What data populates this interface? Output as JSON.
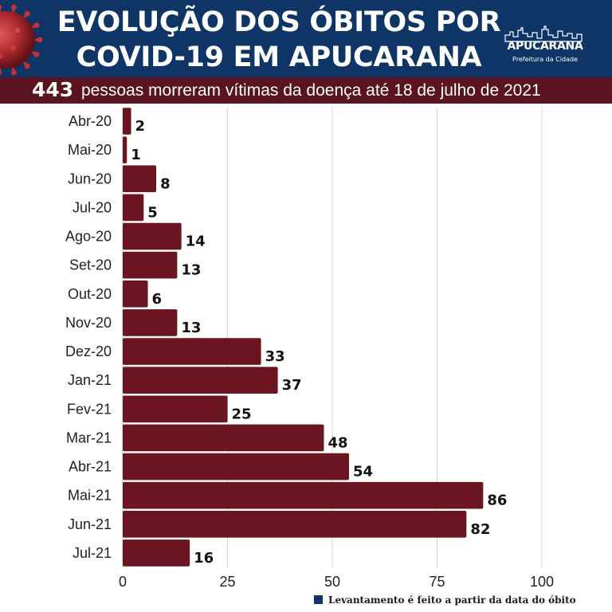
{
  "header": {
    "title_line1": "EVOLUÇÃO DOS ÓBITOS POR",
    "title_line2": "COVID-19 EM APUCARANA",
    "logo_name": "APUCARANA",
    "logo_sub": "Prefeitura da Cidade"
  },
  "subtitle": {
    "total": "443",
    "text": "pessoas morreram vítimas da doença até 18 de julho de 2021"
  },
  "footnote": "Levantamento é feito a partir da data do óbito",
  "colors": {
    "header_bg": "#0e3566",
    "subtitle_bg": "#5a1420",
    "bar": "#6b1520",
    "footnote_swatch": "#0e3566"
  },
  "icons": [
    "coronavirus-icon",
    "city-skyline-icon"
  ],
  "chart_data": {
    "type": "bar",
    "orientation": "horizontal",
    "categories": [
      "Abr-20",
      "Mai-20",
      "Jun-20",
      "Jul-20",
      "Ago-20",
      "Set-20",
      "Out-20",
      "Nov-20",
      "Dez-20",
      "Jan-21",
      "Fev-21",
      "Mar-21",
      "Abr-21",
      "Mai-21",
      "Jun-21",
      "Jul-21"
    ],
    "values": [
      2,
      1,
      8,
      5,
      14,
      13,
      6,
      13,
      33,
      37,
      25,
      48,
      54,
      86,
      82,
      16
    ],
    "xlim": [
      0,
      100
    ],
    "xticks": [
      0,
      25,
      50,
      75,
      100
    ],
    "grid": true,
    "data_labels": true
  }
}
